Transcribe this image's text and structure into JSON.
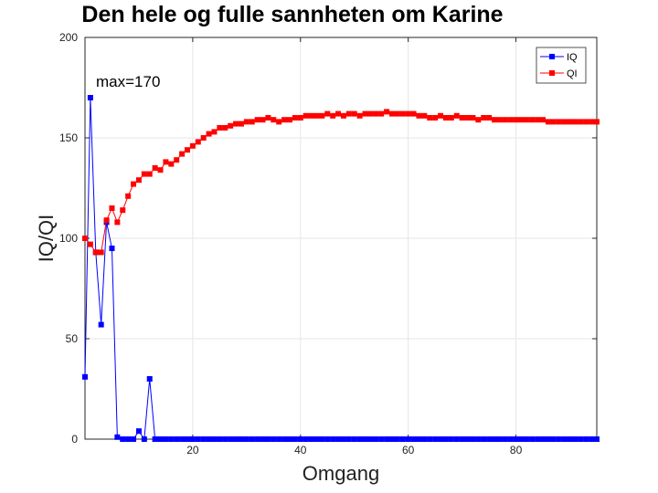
{
  "chart_data": {
    "type": "line",
    "title": "Den hele og fulle sannheten om Karine",
    "xlabel": "Omgang",
    "ylabel": "IQ/QI",
    "xlim": [
      0,
      95
    ],
    "ylim": [
      0,
      200
    ],
    "xticks": [
      20,
      40,
      60,
      80
    ],
    "yticks": [
      0,
      50,
      100,
      150,
      200
    ],
    "grid": true,
    "legend_position": "top-right",
    "annotation": {
      "text": "max=170",
      "x": 2,
      "y": 170
    },
    "series": [
      {
        "name": "IQ",
        "color": "#0000ff",
        "marker": "square",
        "x": [
          0,
          1,
          2,
          3,
          4,
          5,
          6,
          7,
          8,
          9,
          10,
          11,
          12,
          13,
          14,
          15,
          16,
          17,
          18,
          19,
          20,
          21,
          22,
          23,
          24,
          25,
          26,
          27,
          28,
          29,
          30,
          31,
          32,
          33,
          34,
          35,
          36,
          37,
          38,
          39,
          40,
          41,
          42,
          43,
          44,
          45,
          46,
          47,
          48,
          49,
          50,
          51,
          52,
          53,
          54,
          55,
          56,
          57,
          58,
          59,
          60,
          61,
          62,
          63,
          64,
          65,
          66,
          67,
          68,
          69,
          70,
          71,
          72,
          73,
          74,
          75,
          76,
          77,
          78,
          79,
          80,
          81,
          82,
          83,
          84,
          85,
          86,
          87,
          88,
          89,
          90,
          91,
          92,
          93,
          94,
          95
        ],
        "values": [
          31,
          170,
          93,
          57,
          108,
          95,
          1,
          0,
          0,
          0,
          4,
          0,
          30,
          0,
          0,
          0,
          0,
          0,
          0,
          0,
          0,
          0,
          0,
          0,
          0,
          0,
          0,
          0,
          0,
          0,
          0,
          0,
          0,
          0,
          0,
          0,
          0,
          0,
          0,
          0,
          0,
          0,
          0,
          0,
          0,
          0,
          0,
          0,
          0,
          0,
          0,
          0,
          0,
          0,
          0,
          0,
          0,
          0,
          0,
          0,
          0,
          0,
          0,
          0,
          0,
          0,
          0,
          0,
          0,
          0,
          0,
          0,
          0,
          0,
          0,
          0,
          0,
          0,
          0,
          0,
          0,
          0,
          0,
          0,
          0,
          0,
          0,
          0,
          0,
          0,
          0,
          0,
          0,
          0,
          0,
          0
        ]
      },
      {
        "name": "QI",
        "color": "#ff0000",
        "marker": "square",
        "x": [
          0,
          1,
          2,
          3,
          4,
          5,
          6,
          7,
          8,
          9,
          10,
          11,
          12,
          13,
          14,
          15,
          16,
          17,
          18,
          19,
          20,
          21,
          22,
          23,
          24,
          25,
          26,
          27,
          28,
          29,
          30,
          31,
          32,
          33,
          34,
          35,
          36,
          37,
          38,
          39,
          40,
          41,
          42,
          43,
          44,
          45,
          46,
          47,
          48,
          49,
          50,
          51,
          52,
          53,
          54,
          55,
          56,
          57,
          58,
          59,
          60,
          61,
          62,
          63,
          64,
          65,
          66,
          67,
          68,
          69,
          70,
          71,
          72,
          73,
          74,
          75,
          76,
          77,
          78,
          79,
          80,
          81,
          82,
          83,
          84,
          85,
          86,
          87,
          88,
          89,
          90,
          91,
          92,
          93,
          94,
          95
        ],
        "values": [
          100,
          97,
          93,
          93,
          109,
          115,
          108,
          114,
          121,
          127,
          129,
          132,
          132,
          135,
          134,
          138,
          137,
          139,
          142,
          144,
          146,
          148,
          150,
          152,
          153,
          155,
          155,
          156,
          157,
          157,
          158,
          158,
          159,
          159,
          160,
          159,
          158,
          159,
          159,
          160,
          160,
          161,
          161,
          161,
          161,
          162,
          161,
          162,
          161,
          162,
          162,
          161,
          162,
          162,
          162,
          162,
          163,
          162,
          162,
          162,
          162,
          162,
          161,
          161,
          160,
          160,
          161,
          160,
          160,
          161,
          160,
          160,
          160,
          159,
          160,
          160,
          159,
          159,
          159,
          159,
          159,
          159,
          159,
          159,
          159,
          159,
          158,
          158,
          158,
          158,
          158,
          158,
          158,
          158,
          158,
          158
        ]
      }
    ]
  }
}
